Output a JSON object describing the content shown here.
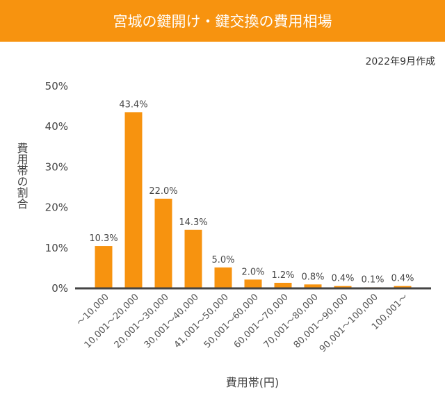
{
  "header": {
    "title": "宮城の鍵開け・鍵交換の費用相場",
    "date_note": "2022年9月作成"
  },
  "chart_data": {
    "type": "bar",
    "title": "宮城の鍵開け・鍵交換の費用相場",
    "xlabel": "費用帯(円)",
    "ylabel": "費用帯の割合",
    "ylim": [
      0,
      50
    ],
    "yticks": [
      "0%",
      "10%",
      "20%",
      "30%",
      "40%",
      "50%"
    ],
    "categories": [
      "～10,000",
      "10,001～20,000",
      "20,001～30,000",
      "30,001～40,000",
      "41,001～50,000",
      "50,001～60,000",
      "60,001～70,000",
      "70,001～80,000",
      "80,001～90,000",
      "90,001～100,000",
      "100,001～"
    ],
    "values": [
      10.3,
      43.4,
      22.0,
      14.3,
      5.0,
      2.0,
      1.2,
      0.8,
      0.4,
      0.1,
      0.4
    ],
    "data_labels": [
      "10.3%",
      "43.4%",
      "22.0%",
      "14.3%",
      "5.0%",
      "2.0%",
      "1.2%",
      "0.8%",
      "0.4%",
      "0.1%",
      "0.4%"
    ],
    "bar_color": "#f7930f",
    "grid": false,
    "legend": "none"
  }
}
